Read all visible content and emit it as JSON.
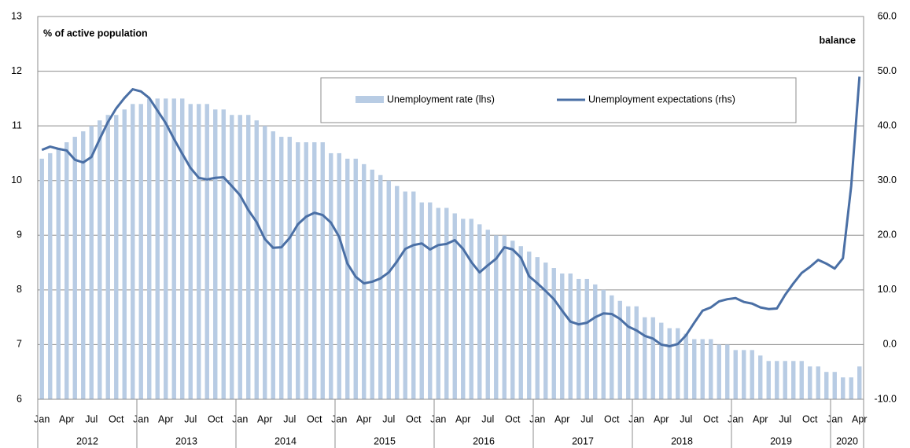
{
  "chart_data": {
    "type": "bar-line",
    "ylabel": "% of active population",
    "y2label": "balance",
    "ylim": [
      6,
      13
    ],
    "yticks": [
      6,
      7,
      8,
      9,
      10,
      11,
      12,
      13
    ],
    "y2lim": [
      -10,
      60
    ],
    "y2ticks": [
      {
        "value": -10,
        "label": "-10.0"
      },
      {
        "value": 0,
        "label": "0.0"
      },
      {
        "value": 10,
        "label": "10.0"
      },
      {
        "value": 20,
        "label": "20.0"
      },
      {
        "value": 30,
        "label": "30.0"
      },
      {
        "value": 40,
        "label": "40.0"
      },
      {
        "value": 50,
        "label": "50.0"
      },
      {
        "value": 60,
        "label": "60.0"
      }
    ],
    "grid": true,
    "categories": [
      "Jan",
      null,
      null,
      "Apr",
      null,
      null,
      "Jul",
      null,
      null,
      "Oct",
      null,
      null,
      "Jan",
      null,
      null,
      "Apr",
      null,
      null,
      "Jul",
      null,
      null,
      "Oct",
      null,
      null,
      "Jan",
      null,
      null,
      "Apr",
      null,
      null,
      "Jul",
      null,
      null,
      "Oct",
      null,
      null,
      "Jan",
      null,
      null,
      "Apr",
      null,
      null,
      "Jul",
      null,
      null,
      "Oct",
      null,
      null,
      "Jan",
      null,
      null,
      "Apr",
      null,
      null,
      "Jul",
      null,
      null,
      "Oct",
      null,
      null,
      "Jan",
      null,
      null,
      "Apr",
      null,
      null,
      "Jul",
      null,
      null,
      "Oct",
      null,
      null,
      "Jan",
      null,
      null,
      "Apr",
      null,
      null,
      "Jul",
      null,
      null,
      "Oct",
      null,
      null,
      "Jan",
      null,
      null,
      "Apr",
      null,
      null,
      "Jul",
      null,
      null,
      "Oct",
      null,
      null,
      "Jan",
      null,
      null,
      "Apr"
    ],
    "years": [
      "2012",
      "2013",
      "2014",
      "2015",
      "2016",
      "2017",
      "2018",
      "2019",
      "2020"
    ],
    "series": [
      {
        "name": "Unemployment rate (lhs)",
        "type": "bar",
        "color": "#b8cce4",
        "values": [
          10.4,
          10.5,
          10.6,
          10.7,
          10.8,
          10.9,
          11.0,
          11.1,
          11.2,
          11.2,
          11.3,
          11.4,
          11.4,
          11.5,
          11.5,
          11.5,
          11.5,
          11.5,
          11.4,
          11.4,
          11.4,
          11.3,
          11.3,
          11.2,
          11.2,
          11.2,
          11.1,
          11.0,
          10.9,
          10.8,
          10.8,
          10.7,
          10.7,
          10.7,
          10.7,
          10.5,
          10.5,
          10.4,
          10.4,
          10.3,
          10.2,
          10.1,
          10.0,
          9.9,
          9.8,
          9.8,
          9.6,
          9.6,
          9.5,
          9.5,
          9.4,
          9.3,
          9.3,
          9.2,
          9.1,
          9.0,
          9.0,
          8.9,
          8.8,
          8.7,
          8.6,
          8.5,
          8.4,
          8.3,
          8.3,
          8.2,
          8.2,
          8.1,
          8.0,
          7.9,
          7.8,
          7.7,
          7.7,
          7.5,
          7.5,
          7.4,
          7.3,
          7.3,
          7.2,
          7.1,
          7.1,
          7.1,
          7.0,
          7.0,
          6.9,
          6.9,
          6.9,
          6.8,
          6.7,
          6.7,
          6.7,
          6.7,
          6.7,
          6.6,
          6.6,
          6.5,
          6.5,
          6.4,
          6.4,
          6.6
        ]
      },
      {
        "name": "Unemployment expectations (rhs)",
        "type": "line",
        "axis": "y2",
        "color": "#4a6fa5",
        "values": [
          35.6,
          36.2,
          35.8,
          35.5,
          33.8,
          33.3,
          34.3,
          37.6,
          40.7,
          43.2,
          45.1,
          46.7,
          46.3,
          45.1,
          42.8,
          40.5,
          37.6,
          34.9,
          32.3,
          30.5,
          30.2,
          30.5,
          30.6,
          29.0,
          27.3,
          24.6,
          22.4,
          19.3,
          17.7,
          17.8,
          19.5,
          22.0,
          23.4,
          24.1,
          23.7,
          22.3,
          19.7,
          14.8,
          12.4,
          11.2,
          11.5,
          12.1,
          13.2,
          15.2,
          17.5,
          18.2,
          18.5,
          17.4,
          18.2,
          18.4,
          19.1,
          17.5,
          15.1,
          13.2,
          14.5,
          15.7,
          17.8,
          17.4,
          15.9,
          12.5,
          11.2,
          9.8,
          8.3,
          6.2,
          4.2,
          3.7,
          4.0,
          5.0,
          5.7,
          5.6,
          4.7,
          3.3,
          2.6,
          1.6,
          1.1,
          0.0,
          -0.3,
          0.1,
          1.7,
          4.0,
          6.2,
          6.8,
          7.9,
          8.3,
          8.5,
          7.8,
          7.5,
          6.8,
          6.5,
          6.6,
          9.1,
          11.2,
          13.1,
          14.2,
          15.5,
          14.8,
          13.9,
          15.8,
          29.0,
          49.0
        ]
      }
    ]
  }
}
